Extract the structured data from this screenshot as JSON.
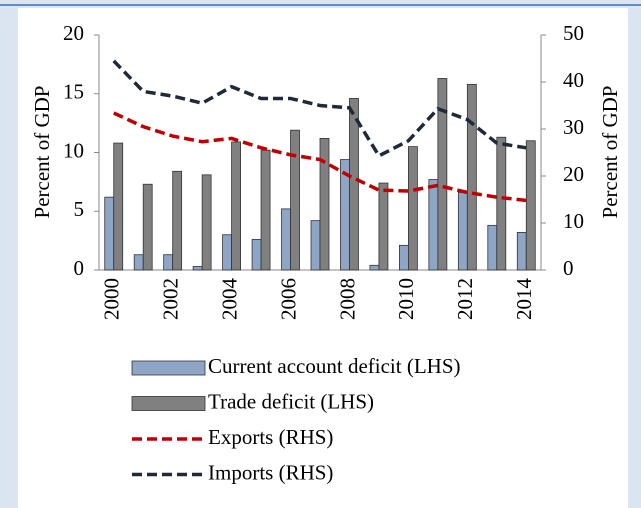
{
  "chart_data": {
    "type": "bar_line",
    "categories": [
      "2000",
      null,
      "2002",
      null,
      "2004",
      null,
      "2006",
      null,
      "2008",
      null,
      "2010",
      null,
      "2012",
      null,
      "2014"
    ],
    "ylabel": "Percent of GDP",
    "y2label": "Percent of GDP",
    "ylim": [
      0,
      20
    ],
    "yticks": [
      0,
      5,
      10,
      15,
      20
    ],
    "y2lim": [
      0,
      50
    ],
    "y2ticks": [
      0,
      10,
      20,
      30,
      40,
      50
    ],
    "series": [
      {
        "name": "Current account deficit (LHS)",
        "type": "bar",
        "color": "#8ea5c6",
        "values": [
          6.2,
          1.3,
          1.3,
          0.3,
          3.0,
          2.6,
          5.2,
          4.2,
          9.4,
          0.4,
          2.1,
          7.7,
          6.6,
          3.8,
          3.2
        ]
      },
      {
        "name": "Trade deficit (LHS)",
        "type": "bar",
        "color": "#808080",
        "values": [
          10.8,
          7.3,
          8.4,
          8.1,
          10.9,
          10.2,
          11.9,
          11.2,
          14.6,
          7.4,
          10.5,
          16.3,
          15.8,
          11.3,
          11.0
        ]
      },
      {
        "name": "Exports (RHS)",
        "type": "line",
        "axis": "y2",
        "color": "#c00000",
        "values": [
          33.4,
          30.5,
          28.5,
          27.3,
          28.0,
          26.0,
          24.5,
          23.5,
          20.0,
          17.0,
          16.8,
          18.0,
          16.5,
          15.5,
          14.8
        ]
      },
      {
        "name": "Imports (RHS)",
        "type": "line",
        "axis": "y2",
        "color": "#1f2a38",
        "values": [
          44.5,
          38.0,
          37.0,
          35.5,
          39.0,
          36.5,
          36.5,
          35.0,
          34.5,
          24.3,
          27.5,
          34.3,
          32.0,
          27.0,
          26.0
        ]
      }
    ]
  }
}
